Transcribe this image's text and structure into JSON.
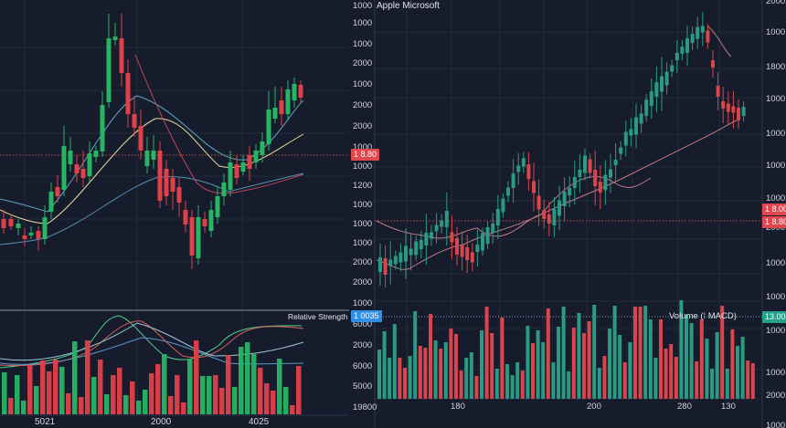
{
  "left_chart": {
    "indicator_title": "Relative Strength RSI",
    "x_ticks": [
      {
        "label": "5021",
        "x": 38
      },
      {
        "label": "2000",
        "x": 165
      },
      {
        "label": "4025",
        "x": 272
      }
    ]
  },
  "right_chart": {
    "title": "Apple Microsoft",
    "volume_title": "Volume (⁞ MACD)",
    "left_axis": [
      "1000",
      "1000",
      "1000",
      "2000",
      "1000",
      "2000",
      "2000",
      "1000",
      "1000",
      "1200",
      "1000",
      "1000",
      "1000",
      "2000",
      "2000",
      "1000",
      "6000",
      "2000",
      "6000",
      "5000",
      "19800"
    ],
    "right_axis": [
      "2000",
      "1000",
      "1800",
      "1000",
      "1000",
      "1000",
      "1000",
      "2000",
      "1000",
      "1000",
      "1000",
      "1000",
      "2000",
      "1000"
    ],
    "x_ticks": [
      {
        "label": "180",
        "x": 493
      },
      {
        "label": "200",
        "x": 642
      },
      {
        "label": "280",
        "x": 741
      },
      {
        "label": "130",
        "x": 789
      }
    ],
    "badges": {
      "left_price": "1 8.80",
      "left_indicator": "1 0035",
      "right_price_1": "1 8.00",
      "right_price_2": "1 8.80",
      "right_volume": "13.00"
    }
  },
  "colors": {
    "background": "#161c2b",
    "grid": "#232b3d",
    "bull_left": "#27b564",
    "bear_left": "#e0404a",
    "bull_right": "#2a9a84",
    "bear_right": "#d9454c",
    "ma_blue": "#5fa6c9",
    "ma_yellow": "#e8dca0",
    "ma_red": "#c4475a",
    "ma_pink": "#c27a84"
  },
  "chart_data": [
    {
      "type": "candlestick",
      "title": "",
      "panel": "left-price",
      "overlays": [
        "MA blue",
        "MA yellow",
        "MA red"
      ],
      "reference_line": "dotted red at ~y=170",
      "candles_ohlc_approx_pixel": "rising from ~260 to peak ~15, dip to ~290, rally to ~90",
      "x_ticks": [
        "5021",
        "2000",
        "4025"
      ]
    },
    {
      "type": "line",
      "title": "Relative Strength RSI",
      "panel": "left-indicator",
      "series": [
        {
          "name": "RSI fast (green)",
          "shape": "peak near x=130, trough near x=210, plateau x=280-330"
        },
        {
          "name": "RSI signal (red)",
          "shape": "smoothed follow"
        },
        {
          "name": "MA (light blue)",
          "shape": "wave peak x=155"
        },
        {
          "name": "MA (blue)",
          "shape": "gentle wave"
        }
      ]
    },
    {
      "type": "bar",
      "title": "Volume",
      "panel": "left-volume",
      "values_note": "alternating green/red bars, heights 10-85px"
    },
    {
      "type": "candlestick",
      "title": "Apple Microsoft",
      "panel": "right-price",
      "overlays": [
        "MA pink upper",
        "MA pink lower"
      ],
      "trend": "uptrend from ~290 to peak ~25, pullback to ~130",
      "y_tick_labels": [
        "1000",
        "1000",
        "1000",
        "2000",
        "1000",
        "2000",
        "2000",
        "1000",
        "1000",
        "1200",
        "1000",
        "1000",
        "1000",
        "2000",
        "2000",
        "1000"
      ],
      "x_ticks": [
        "180",
        "200",
        "280",
        "130"
      ]
    },
    {
      "type": "bar",
      "title": "Volume (⁞ MACD)",
      "panel": "right-volume",
      "y_tick_labels": [
        "6000",
        "2000",
        "6000",
        "5000",
        "19800"
      ],
      "values_note": "teal/red bars heights 30-110px"
    }
  ]
}
